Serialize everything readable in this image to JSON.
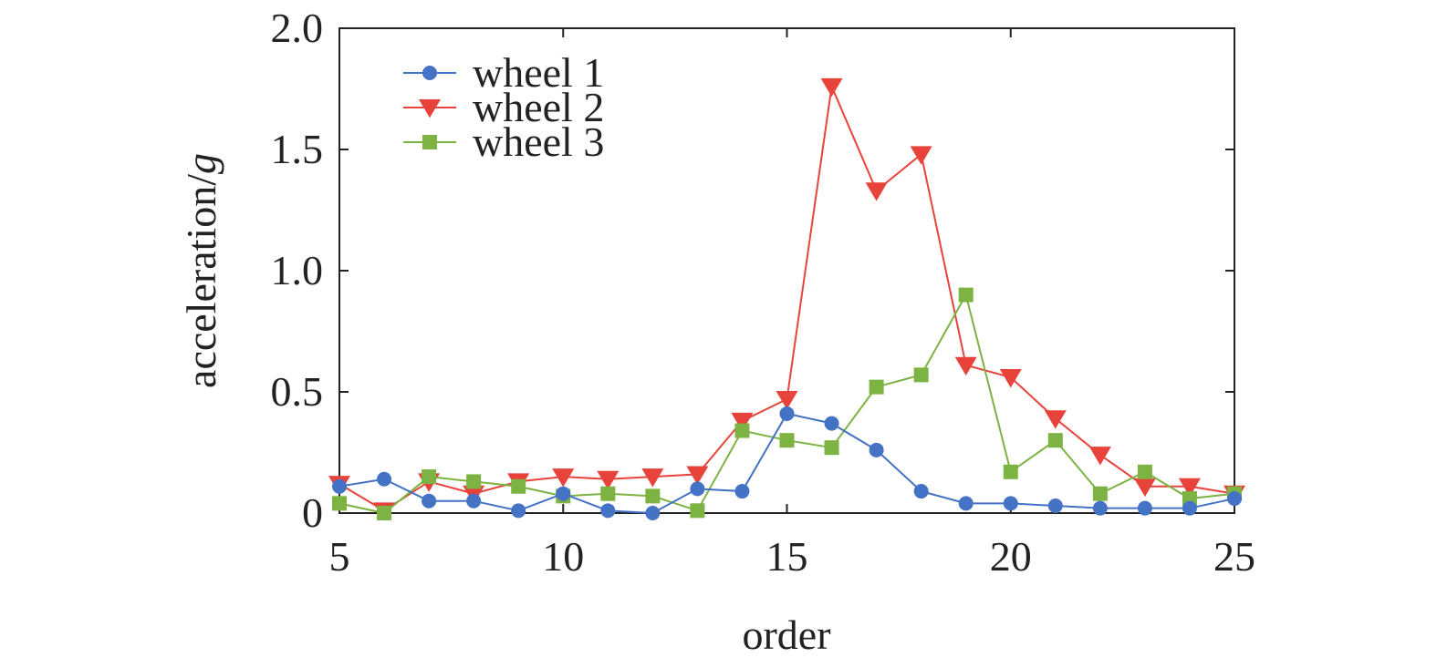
{
  "chart_data": {
    "type": "line",
    "xlabel": "order",
    "ylabel_main": "acceleration/",
    "ylabel_italic": "g",
    "xlim": [
      5,
      25
    ],
    "ylim": [
      0,
      2.0
    ],
    "x_ticks": [
      5,
      10,
      15,
      20,
      25
    ],
    "x_tick_labels": [
      "5",
      "10",
      "15",
      "20",
      "25"
    ],
    "y_ticks": [
      0,
      0.5,
      1.0,
      1.5,
      2.0
    ],
    "y_tick_labels": [
      "0",
      "0.5",
      "1.0",
      "1.5",
      "2.0"
    ],
    "grid": false,
    "legend_position": "top-left",
    "x": [
      5,
      6,
      7,
      8,
      9,
      10,
      11,
      12,
      13,
      14,
      15,
      16,
      17,
      18,
      19,
      20,
      21,
      22,
      23,
      24,
      25
    ],
    "series": [
      {
        "name": "wheel 1",
        "color": "#4472c4",
        "marker": "circle",
        "values": [
          0.11,
          0.14,
          0.05,
          0.05,
          0.01,
          0.08,
          0.01,
          0.0,
          0.1,
          0.09,
          0.41,
          0.37,
          0.26,
          0.09,
          0.04,
          0.04,
          0.03,
          0.02,
          0.02,
          0.02,
          0.06
        ]
      },
      {
        "name": "wheel 2",
        "color": "#e8433a",
        "marker": "triangle-down",
        "values": [
          0.12,
          0.01,
          0.13,
          0.08,
          0.13,
          0.15,
          0.14,
          0.15,
          0.16,
          0.38,
          0.47,
          1.76,
          1.33,
          1.48,
          0.61,
          0.56,
          0.39,
          0.24,
          0.11,
          0.11,
          0.08
        ]
      },
      {
        "name": "wheel 3",
        "color": "#7cb342",
        "marker": "square",
        "values": [
          0.04,
          0.0,
          0.15,
          0.13,
          0.11,
          0.07,
          0.08,
          0.07,
          0.01,
          0.34,
          0.3,
          0.27,
          0.52,
          0.57,
          0.9,
          0.17,
          0.3,
          0.08,
          0.17,
          0.06,
          0.08
        ]
      }
    ]
  }
}
